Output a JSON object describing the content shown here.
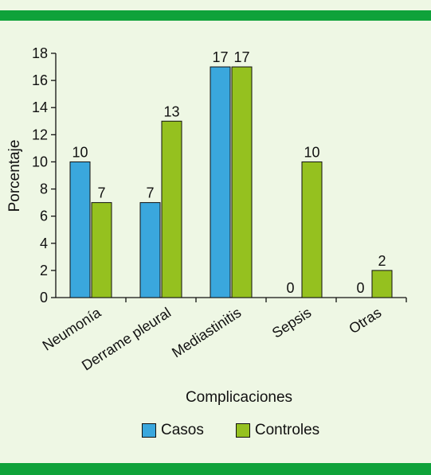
{
  "chart_data": {
    "type": "bar",
    "categories": [
      "Neumonía",
      "Derrame pleural",
      "Mediastinitis",
      "Sepsis",
      "Otras"
    ],
    "series": [
      {
        "name": "Casos",
        "values": [
          10,
          7,
          17,
          0,
          0
        ],
        "labels": [
          "10",
          "7",
          "17",
          "0",
          "0"
        ],
        "color": "#3aa7dd"
      },
      {
        "name": "Controles",
        "values": [
          7,
          13,
          17,
          10,
          2
        ],
        "labels": [
          "7",
          "13",
          "17",
          "10",
          "2"
        ],
        "color": "#95c11f"
      }
    ],
    "xlabel": "Complicaciones",
    "ylabel": "Porcentaje",
    "ylim": [
      0,
      18
    ],
    "yticks": [
      "0",
      "2",
      "4",
      "6",
      "8",
      "10",
      "12",
      "14",
      "16",
      "18"
    ],
    "grid": false,
    "legend": "bottom"
  },
  "colors": {
    "band": "#0fa23a",
    "background": "#eef7e4"
  }
}
